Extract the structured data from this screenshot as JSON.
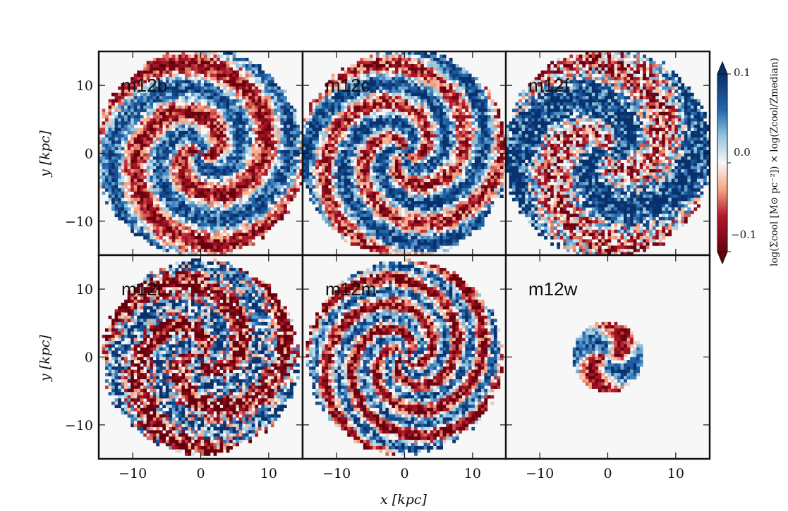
{
  "chart_data": {
    "type": "heatmap",
    "panels": [
      {
        "name": "m12b",
        "spiral": {
          "arms": 2,
          "twist": 0.42,
          "extent": 15,
          "bias": 0.0,
          "noise": 0.45
        }
      },
      {
        "name": "m12c",
        "spiral": {
          "arms": 3,
          "twist": 0.35,
          "extent": 15,
          "bias": 0.1,
          "noise": 0.5
        }
      },
      {
        "name": "m12f",
        "spiral": {
          "arms": 2,
          "twist": 0.25,
          "extent": 15,
          "bias": 0.25,
          "noise": 0.75
        }
      },
      {
        "name": "m12i",
        "spiral": {
          "arms": 3,
          "twist": 0.3,
          "extent": 14,
          "bias": -0.15,
          "noise": 0.9
        }
      },
      {
        "name": "m12m",
        "spiral": {
          "arms": 4,
          "twist": 0.4,
          "extent": 14,
          "bias": -0.1,
          "noise": 0.55
        }
      },
      {
        "name": "m12w",
        "spiral": {
          "arms": 2,
          "twist": 0.3,
          "extent": 5,
          "bias": 0.0,
          "noise": 0.4
        }
      }
    ],
    "xlabel": "x [kpc]",
    "ylabel": "y [kpc]",
    "xlim": [
      -15,
      15
    ],
    "ylim": [
      -15,
      15
    ],
    "xticks": [
      -10,
      0,
      10
    ],
    "yticks": [
      10,
      0,
      -10
    ],
    "xtick_labels": [
      "−10",
      "0",
      "10"
    ],
    "ytick_labels": [
      "10",
      "0",
      "−10"
    ],
    "colorbar": {
      "label": "log(Σcool [M⊙ pc⁻²]) × log(Zcool/Zmedian)",
      "min": -0.1,
      "max": 0.1,
      "ticks": [
        0.1,
        0.0,
        -0.1
      ],
      "tick_labels": [
        "0.1",
        "0.0",
        "−0.1"
      ],
      "colors": {
        "high": "#08306b",
        "mid": "#f7f7f7",
        "low": "#67000d"
      },
      "extend": "both"
    },
    "grid": false
  }
}
